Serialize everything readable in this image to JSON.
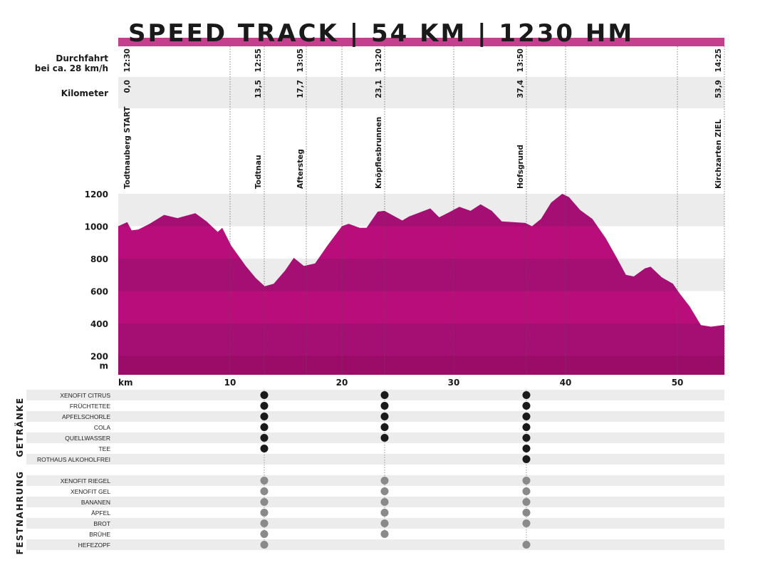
{
  "title": "SPEED TRACK | 54 KM | 1230 HM",
  "colors": {
    "accent_bar": "#c4408e",
    "fill_light": "#b80d7b",
    "fill_dark": "#a50e72",
    "fill_darkest": "#9a0c68",
    "band_grey": "#ececec",
    "drink_dot": "#1a1a1a",
    "food_dot": "#8a8a8a"
  },
  "header": {
    "durchfahrt_line1": "Durchfahrt",
    "durchfahrt_line2": "bei ca. 28 km/h",
    "kilometer": "Kilometer"
  },
  "stations": [
    {
      "name": "Todtnauberg START",
      "time": "12:30",
      "km": "0,0"
    },
    {
      "name": "Todtnau",
      "time": "12:55",
      "km": "13,5"
    },
    {
      "name": "Aftersteg",
      "time": "13:05",
      "km": "17,7"
    },
    {
      "name": "Knöpflesbrunnen",
      "time": "13:20",
      "km": "23,1"
    },
    {
      "name": "Hofsgrund",
      "time": "13:50",
      "km": "37,4"
    },
    {
      "name": "Kirchzarten ZIEL",
      "time": "14:25",
      "km": "53,9"
    }
  ],
  "chart_data": {
    "type": "area",
    "title": "SPEED TRACK | 54 KM | 1230 HM",
    "xlabel": "km",
    "ylabel": "m",
    "x_ticks": [
      "10",
      "20",
      "30",
      "40",
      "50"
    ],
    "y_ticks": [
      "1200",
      "1000",
      "800",
      "600",
      "400",
      "200"
    ],
    "xlim": [
      0,
      54
    ],
    "ylim": [
      80,
      1200
    ],
    "grid": "horizontal bands every 200 m, dotted vertical lines every 10 km",
    "profile": {
      "x": [
        0,
        0.8,
        1.2,
        1.8,
        2.8,
        4.1,
        5.3,
        6.9,
        7.9,
        8.9,
        9.3,
        10.1,
        11.4,
        12.3,
        13.1,
        13.9,
        14.9,
        15.7,
        16.6,
        17.6,
        18.7,
        20,
        20.6,
        21.6,
        22.2,
        23.2,
        23.8,
        25.4,
        26,
        27.9,
        28.7,
        29.7,
        30.5,
        31.5,
        32.4,
        33.4,
        34.3,
        35.3,
        36.4,
        37,
        37.8,
        38.7,
        39.7,
        40.3,
        41.3,
        42.4,
        43.6,
        44.5,
        45.4,
        46.1,
        47.1,
        47.6,
        48.6,
        49.6,
        50.2,
        51.1,
        52.1,
        53,
        54.1
      ],
      "y": [
        1000,
        1025,
        975,
        980,
        1015,
        1070,
        1050,
        1080,
        1030,
        965,
        990,
        880,
        755,
        680,
        630,
        645,
        725,
        805,
        755,
        770,
        880,
        1000,
        1015,
        990,
        990,
        1090,
        1095,
        1035,
        1060,
        1110,
        1055,
        1090,
        1120,
        1095,
        1135,
        1095,
        1030,
        1025,
        1020,
        1000,
        1045,
        1145,
        1200,
        1180,
        1100,
        1045,
        925,
        815,
        700,
        690,
        740,
        750,
        685,
        645,
        585,
        505,
        390,
        380,
        390
      ]
    }
  },
  "supply": {
    "groups": [
      {
        "label": "GETRÄNKE",
        "type": "drink",
        "items": [
          {
            "name": "XENOFIT CITRUS",
            "at": [
              "Todtnau",
              "Knöpflesbrunnen",
              "Hofsgrund"
            ]
          },
          {
            "name": "FRÜCHTETEE",
            "at": [
              "Todtnau",
              "Knöpflesbrunnen",
              "Hofsgrund"
            ]
          },
          {
            "name": "APFELSCHORLE",
            "at": [
              "Todtnau",
              "Knöpflesbrunnen",
              "Hofsgrund"
            ]
          },
          {
            "name": "COLA",
            "at": [
              "Todtnau",
              "Knöpflesbrunnen",
              "Hofsgrund"
            ]
          },
          {
            "name": "QUELLWASSER",
            "at": [
              "Todtnau",
              "Knöpflesbrunnen",
              "Hofsgrund"
            ]
          },
          {
            "name": "TEE",
            "at": [
              "Todtnau",
              "Hofsgrund"
            ]
          },
          {
            "name": "ROTHAUS ALKOHOLFREI",
            "at": [
              "Hofsgrund"
            ]
          }
        ]
      },
      {
        "label": "FESTNAHRUNG",
        "type": "food",
        "items": [
          {
            "name": "XENOFIT RIEGEL",
            "at": [
              "Todtnau",
              "Knöpflesbrunnen",
              "Hofsgrund"
            ]
          },
          {
            "name": "XENOFIT GEL",
            "at": [
              "Todtnau",
              "Knöpflesbrunnen",
              "Hofsgrund"
            ]
          },
          {
            "name": "BANANEN",
            "at": [
              "Todtnau",
              "Knöpflesbrunnen",
              "Hofsgrund"
            ]
          },
          {
            "name": "ÄPFEL",
            "at": [
              "Todtnau",
              "Knöpflesbrunnen",
              "Hofsgrund"
            ]
          },
          {
            "name": "BROT",
            "at": [
              "Todtnau",
              "Knöpflesbrunnen",
              "Hofsgrund"
            ]
          },
          {
            "name": "BRÜHE",
            "at": [
              "Todtnau",
              "Knöpflesbrunnen"
            ]
          },
          {
            "name": "HEFEZOPF",
            "at": [
              "Todtnau",
              "Hofsgrund"
            ]
          }
        ]
      }
    ]
  }
}
